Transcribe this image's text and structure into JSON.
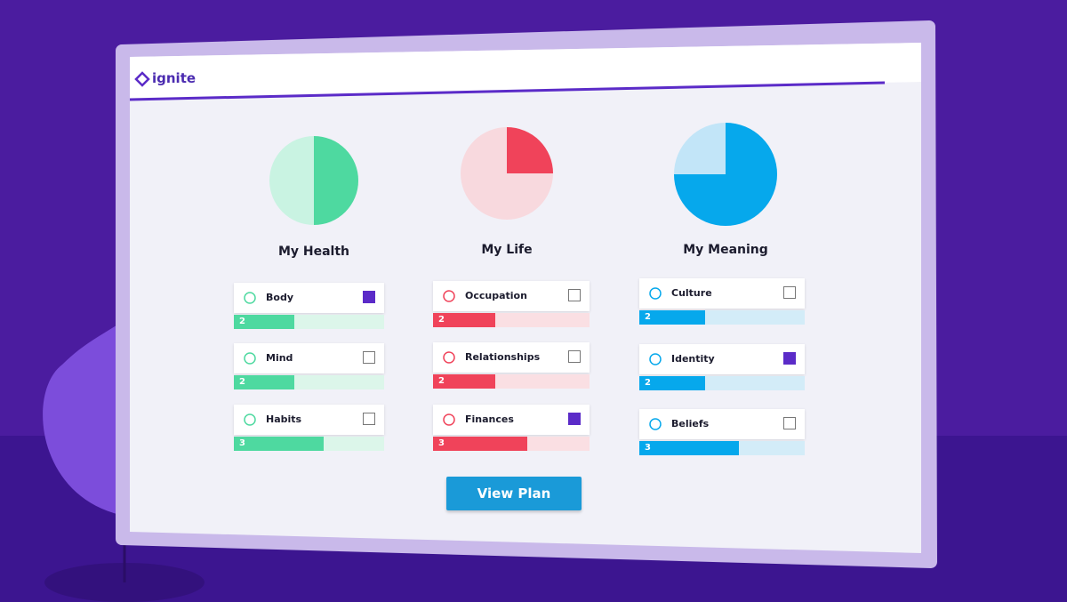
{
  "logo": "ignite",
  "score_lim": [
    0,
    5
  ],
  "categories": [
    {
      "title": "My Health",
      "progress": 50,
      "color": "#4ed9a0",
      "light": "#c9f3e2",
      "track": "#dcf6ea",
      "items": [
        {
          "label": "Body",
          "score": 2,
          "checked": true
        },
        {
          "label": "Mind",
          "score": 2,
          "checked": false
        },
        {
          "label": "Habits",
          "score": 3,
          "checked": false
        }
      ]
    },
    {
      "title": "My Life",
      "progress": 25,
      "color": "#f0435a",
      "light": "#f8d9de",
      "track": "#fadfe3",
      "items": [
        {
          "label": "Occupation",
          "score": 2,
          "checked": false
        },
        {
          "label": "Relationships",
          "score": 2,
          "checked": false
        },
        {
          "label": "Finances",
          "score": 3,
          "checked": true
        }
      ]
    },
    {
      "title": "My Meaning",
      "progress": 75,
      "color": "#06a8ec",
      "light": "#c2e5f8",
      "track": "#d3ecf8",
      "items": [
        {
          "label": "Culture",
          "score": 2,
          "checked": false
        },
        {
          "label": "Identity",
          "score": 2,
          "checked": true
        },
        {
          "label": "Beliefs",
          "score": 3,
          "checked": false
        }
      ]
    }
  ],
  "button": "View Plan"
}
